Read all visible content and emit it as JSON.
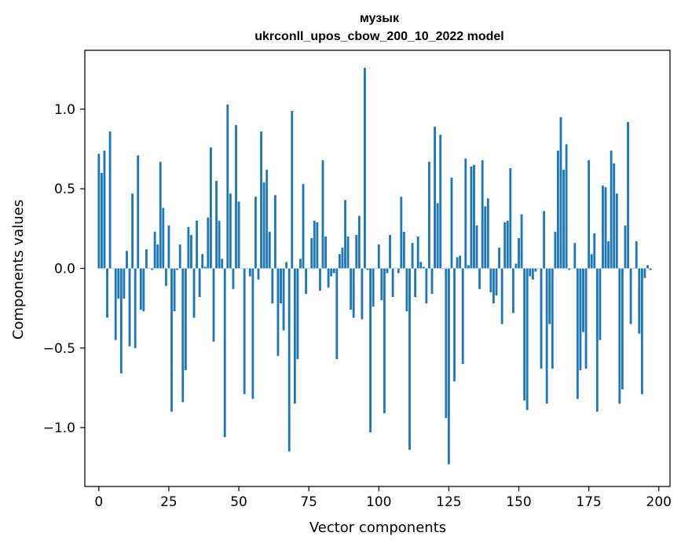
{
  "chart_data": {
    "type": "bar",
    "title_line1": "музык",
    "title_line2": "ukrconll_upos_cbow_200_10_2022 model",
    "xlabel": "Vector components",
    "ylabel": "Components values",
    "xlim": [
      -5,
      204
    ],
    "ylim": [
      -1.37,
      1.37
    ],
    "xticks": [
      0,
      25,
      50,
      75,
      100,
      125,
      150,
      175,
      200
    ],
    "xtick_labels": [
      "0",
      "25",
      "50",
      "75",
      "100",
      "125",
      "150",
      "175",
      "200"
    ],
    "yticks": [
      -1.0,
      -0.5,
      0.0,
      0.5,
      1.0
    ],
    "ytick_labels": [
      "−1.0",
      "−0.5",
      "0.0",
      "0.5",
      "1.0"
    ],
    "bar_color": "#1f77b4",
    "values": [
      0.72,
      0.6,
      0.74,
      -0.31,
      0.86,
      0.0,
      -0.45,
      -0.19,
      -0.66,
      -0.19,
      0.11,
      -0.49,
      0.47,
      -0.5,
      0.71,
      -0.26,
      -0.27,
      0.12,
      0.0,
      -0.01,
      0.23,
      0.15,
      0.67,
      0.38,
      -0.11,
      0.27,
      -0.9,
      -0.27,
      -0.01,
      0.15,
      -0.84,
      -0.64,
      0.26,
      0.21,
      -0.31,
      0.3,
      -0.18,
      0.09,
      0.01,
      0.32,
      0.76,
      -0.46,
      0.55,
      0.3,
      0.06,
      -1.06,
      1.03,
      0.47,
      -0.13,
      0.9,
      0.42,
      0.0,
      -0.79,
      0.0,
      -0.05,
      -0.82,
      0.45,
      -0.07,
      0.86,
      0.54,
      0.62,
      0.23,
      -0.22,
      0.46,
      -0.55,
      -0.22,
      -0.39,
      0.04,
      -1.15,
      0.99,
      -0.85,
      -0.57,
      0.06,
      0.53,
      -0.16,
      0.0,
      0.19,
      0.3,
      0.29,
      -0.14,
      0.68,
      0.2,
      -0.12,
      -0.05,
      -0.03,
      -0.57,
      0.09,
      0.13,
      0.43,
      0.2,
      -0.26,
      -0.31,
      0.21,
      0.33,
      -0.32,
      1.26,
      -0.01,
      -1.03,
      -0.24,
      0.0,
      0.15,
      -0.2,
      -0.91,
      -0.03,
      0.21,
      -0.18,
      0.0,
      -0.03,
      0.45,
      0.23,
      -0.27,
      -1.14,
      0.16,
      -0.18,
      0.2,
      0.04,
      0.01,
      -0.22,
      0.67,
      -0.16,
      0.89,
      0.41,
      0.84,
      0.0,
      -0.94,
      -1.23,
      0.57,
      -0.71,
      0.07,
      0.08,
      -0.6,
      0.69,
      0.02,
      0.64,
      0.65,
      0.27,
      -0.13,
      0.68,
      0.39,
      0.44,
      -0.15,
      -0.22,
      -0.17,
      0.13,
      -0.35,
      0.29,
      0.3,
      0.63,
      -0.28,
      0.03,
      0.19,
      0.34,
      -0.83,
      -0.89,
      -0.05,
      -0.07,
      -0.02,
      0.0,
      -0.63,
      0.36,
      -0.85,
      -0.35,
      -0.63,
      0.23,
      0.74,
      0.95,
      0.62,
      0.78,
      -0.01,
      0.0,
      0.16,
      -0.82,
      -0.64,
      -0.4,
      -0.63,
      0.68,
      0.09,
      0.22,
      -0.9,
      -0.45,
      0.52,
      0.51,
      0.17,
      0.74,
      0.66,
      0.47,
      -0.85,
      -0.76,
      0.27,
      0.92,
      -0.35,
      0.0,
      0.17,
      -0.41,
      -0.79,
      -0.06,
      0.02,
      -0.01
    ]
  }
}
